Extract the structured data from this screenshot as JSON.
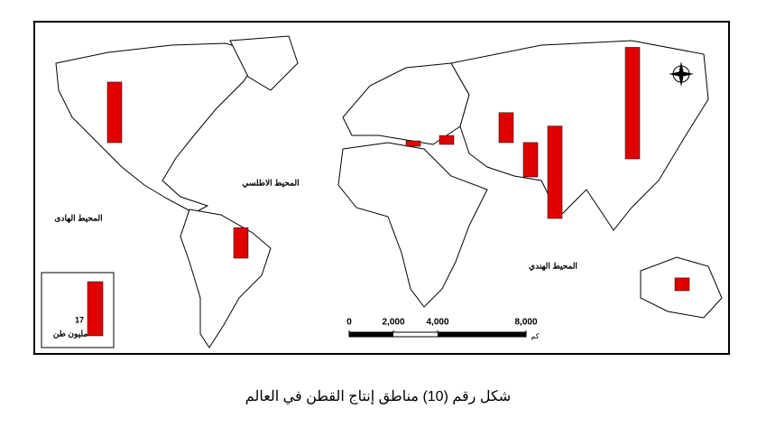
{
  "title": "شكل رقم (10) مناطق إنتاج القطن في العالم",
  "ocean_labels": [
    "المحيط الهادى",
    "المحيط الاطلسي",
    "المحيط الهندي"
  ],
  "bars": {
    "color": "#e00000",
    "values": [
      19,
      9.6,
      35,
      29,
      10.8,
      9.4,
      2.8,
      1.7,
      4
    ]
  },
  "legend": {
    "value": 17,
    "unit": "مليون طن"
  },
  "scale": {
    "ticks": [
      0,
      {
        "value": 2000,
        "label": "2,000"
      },
      {
        "value": 4000,
        "label": "4,000"
      },
      {
        "value": 8000,
        "label": "8,000"
      }
    ],
    "unit": "كم"
  }
}
